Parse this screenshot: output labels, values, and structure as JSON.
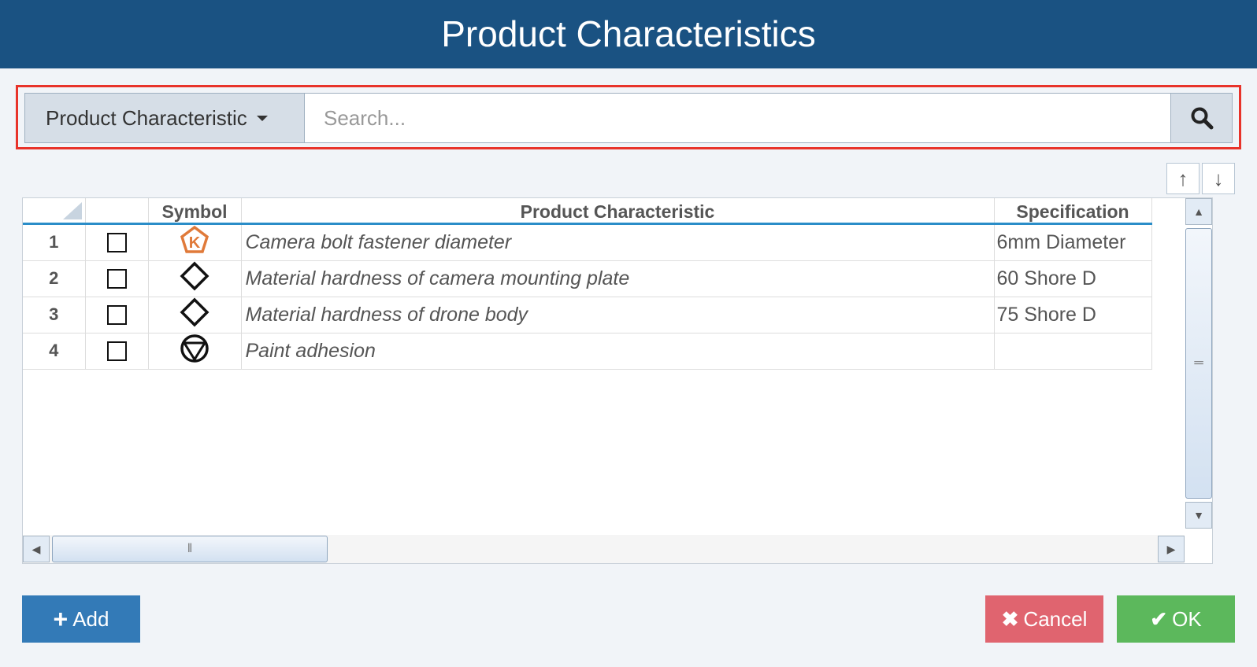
{
  "title": "Product Characteristics",
  "search": {
    "filter_label": "Product Characteristic",
    "placeholder": "Search...",
    "value": ""
  },
  "table": {
    "columns": [
      "",
      "",
      "Symbol",
      "Product Characteristic",
      "Specification"
    ],
    "rows": [
      {
        "num": "1",
        "symbol": "k-pentagon-icon",
        "characteristic": "Camera bolt fastener diameter",
        "spec": "6mm Diameter"
      },
      {
        "num": "2",
        "symbol": "diamond-icon",
        "characteristic": "Material hardness of camera mounting plate",
        "spec": "60 Shore D"
      },
      {
        "num": "3",
        "symbol": "diamond-icon",
        "characteristic": "Material hardness of drone body",
        "spec": "75 Shore D"
      },
      {
        "num": "4",
        "symbol": "circle-triangle-icon",
        "characteristic": "Paint adhesion",
        "spec": ""
      }
    ]
  },
  "buttons": {
    "add": "Add",
    "cancel": "Cancel",
    "ok": "OK"
  },
  "colors": {
    "header": "#1a5282",
    "add": "#337ab7",
    "cancel": "#e0646f",
    "ok": "#5cb85c",
    "highlight": "#e8332a"
  }
}
